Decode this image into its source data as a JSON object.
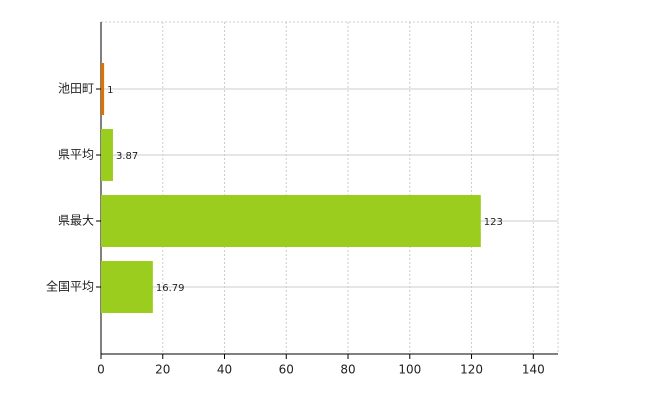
{
  "chart_data": {
    "type": "barh",
    "categories": [
      "池田町",
      "県平均",
      "県最大",
      "全国平均"
    ],
    "values": [
      1,
      3.87,
      123,
      16.79
    ],
    "colors": [
      "#e07000",
      "#9acd1e",
      "#9acd1e",
      "#9acd1e"
    ],
    "xlim": [
      0,
      148
    ],
    "xticks": [
      0,
      20,
      40,
      60,
      80,
      100,
      120,
      140
    ],
    "grid": true
  }
}
